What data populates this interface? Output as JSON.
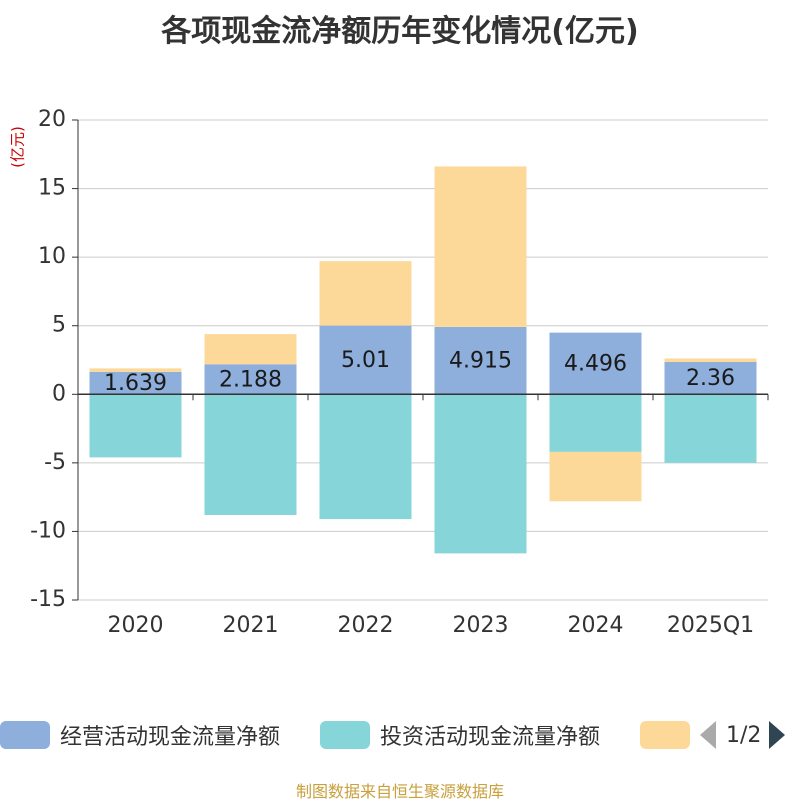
{
  "chart_data": {
    "type": "bar",
    "stacked": true,
    "title": "各项现金流净额历年变化情况(亿元)",
    "ylabel": "(亿元)",
    "xlabel": "",
    "categories": [
      "2020",
      "2021",
      "2022",
      "2023",
      "2024",
      "2025Q1"
    ],
    "ylim": [
      -15,
      20
    ],
    "yticks": [
      20,
      15,
      10,
      5,
      0,
      -5,
      -10,
      -15
    ],
    "grid": true,
    "series": [
      {
        "name": "经营活动现金流量净额",
        "color": "#8eaedc",
        "values": [
          1.639,
          2.188,
          5.01,
          4.915,
          4.496,
          2.36
        ],
        "labels": [
          "1.639",
          "2.188",
          "5.01",
          "4.915",
          "4.496",
          "2.36"
        ]
      },
      {
        "name": "投资活动现金流量净额",
        "color": "#86d5d8",
        "values": [
          -4.6,
          -8.8,
          -9.1,
          -11.6,
          -4.2,
          -5.0
        ]
      },
      {
        "name": "",
        "color": "#fdd999",
        "values": [
          0.25,
          2.2,
          4.7,
          11.7,
          -3.6,
          0.25
        ]
      }
    ],
    "legend_placement": "bottom"
  },
  "legend": {
    "items": [
      {
        "label": "经营活动现金流量净额",
        "color": "#8eaedc"
      },
      {
        "label": "投资活动现金流量净额",
        "color": "#86d5d8"
      },
      {
        "label": "",
        "color": "#fdd999"
      }
    ],
    "page_text": "1/2"
  },
  "footer": {
    "source": "制图数据来自恒生聚源数据库"
  }
}
